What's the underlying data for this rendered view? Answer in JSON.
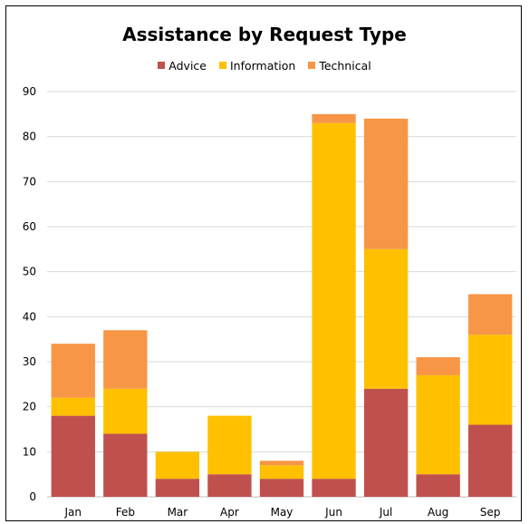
{
  "chart_data": {
    "type": "bar",
    "stacked": true,
    "title": "Assistance by Request Type",
    "xlabel": "",
    "ylabel": "",
    "categories": [
      "Jan",
      "Feb",
      "Mar",
      "Apr",
      "May",
      "Jun",
      "Jul",
      "Aug",
      "Sep"
    ],
    "series": [
      {
        "name": "Advice",
        "color": "#c0504d",
        "values": [
          18,
          14,
          4,
          5,
          4,
          4,
          24,
          5,
          16
        ]
      },
      {
        "name": "Information",
        "color": "#ffc000",
        "values": [
          4,
          10,
          6,
          13,
          3,
          79,
          31,
          22,
          20
        ]
      },
      {
        "name": "Technical",
        "color": "#f79646",
        "values": [
          12,
          13,
          0,
          0,
          1,
          2,
          29,
          4,
          9
        ]
      }
    ],
    "ylim": [
      0,
      90
    ],
    "yticks": [
      0,
      10,
      20,
      30,
      40,
      50,
      60,
      70,
      80,
      90
    ],
    "grid": true,
    "legend_position": "top"
  }
}
